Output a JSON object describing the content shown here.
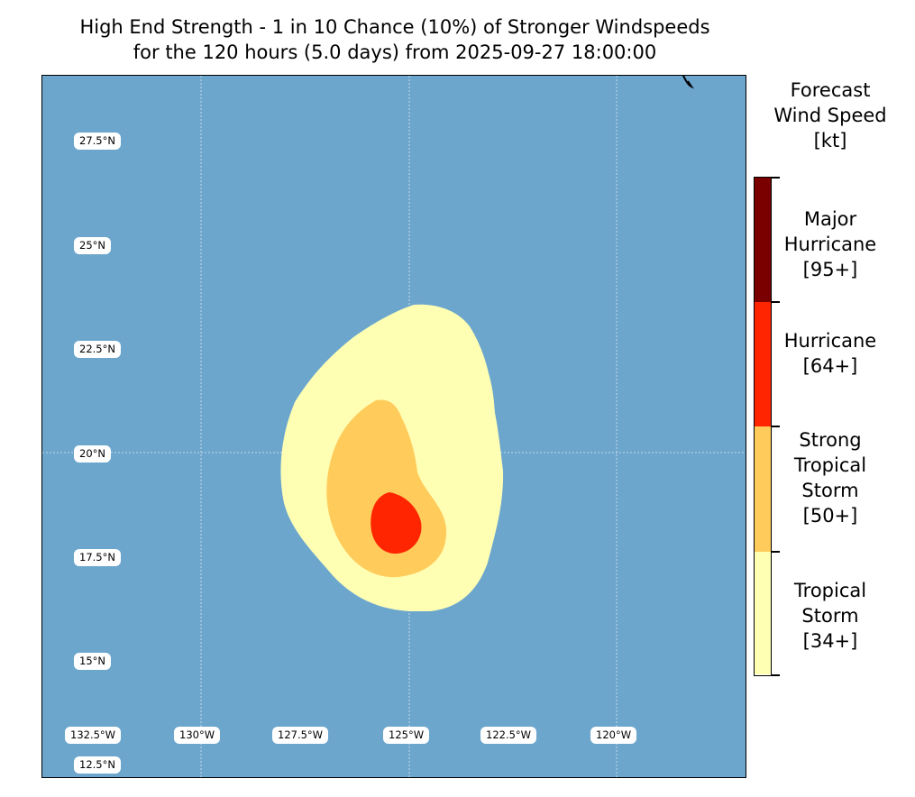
{
  "title": {
    "line1": "High End Strength - 1 in 10 Chance (10%) of Stronger Windspeeds",
    "line2": "for the 120 hours (5.0 days) from 2025-09-27 18:00:00"
  },
  "map": {
    "ocean_color": "#6ca6cd",
    "lat_labels": [
      "27.5°N",
      "25°N",
      "22.5°N",
      "20°N",
      "17.5°N",
      "15°N",
      "12.5°N"
    ],
    "lon_labels": [
      "132.5°W",
      "130°W",
      "127.5°W",
      "125°W",
      "122.5°W",
      "120°W"
    ],
    "regions": [
      {
        "name": "tropical-storm-region",
        "category": "Tropical Storm",
        "color": "#ffffb4"
      },
      {
        "name": "strong-tropical-storm-region",
        "category": "Strong Tropical Storm",
        "color": "#ffcc5c"
      },
      {
        "name": "hurricane-region",
        "category": "Hurricane",
        "color": "#ff2500"
      }
    ]
  },
  "colorbar": {
    "title_line1": "Forecast",
    "title_line2": "Wind Speed",
    "title_line3": "[kt]",
    "categories": [
      {
        "lines": [
          "Major",
          "Hurricane",
          "[95+]"
        ],
        "color": "#7a0000"
      },
      {
        "lines": [
          "Hurricane",
          "[64+]"
        ],
        "color": "#ff2500"
      },
      {
        "lines": [
          "Strong",
          "Tropical",
          "Storm",
          "[50+]"
        ],
        "color": "#ffcc5c"
      },
      {
        "lines": [
          "Tropical",
          "Storm",
          "[34+]"
        ],
        "color": "#ffffb4"
      }
    ]
  }
}
